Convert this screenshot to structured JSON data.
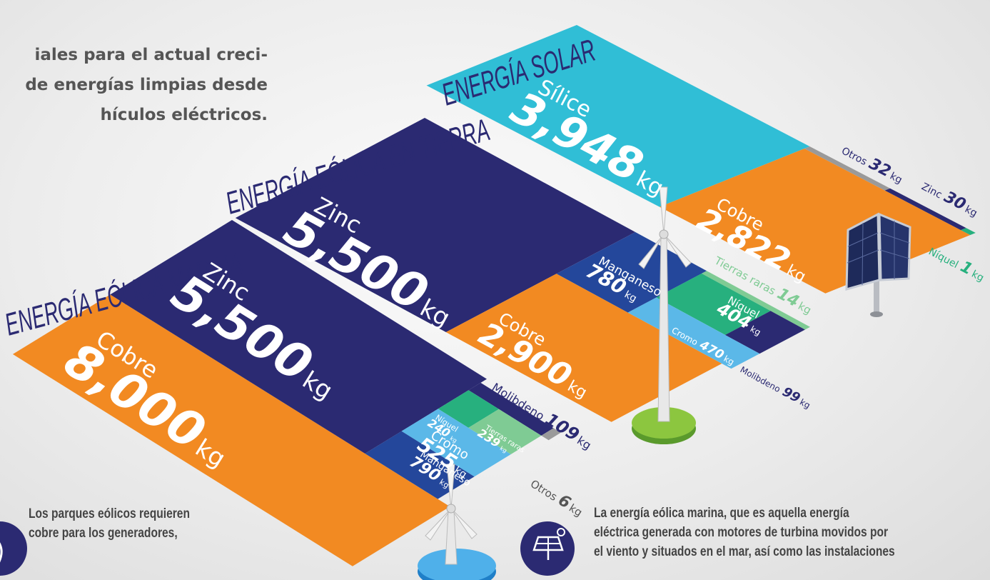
{
  "intro": [
    "iales para el actual creci-",
    "de energías limpias desde",
    "hículos eléctricos."
  ],
  "sections": [
    {
      "title": "ENERGÍA SOLAR",
      "materials": [
        {
          "name": "Sílice",
          "value": "3,948",
          "unit": "kg"
        },
        {
          "name": "Cobre",
          "value": "2,822",
          "unit": "kg"
        },
        {
          "name": "Otros",
          "value": "32",
          "unit": "kg"
        },
        {
          "name": "Zinc",
          "value": "30",
          "unit": "kg"
        },
        {
          "name": "Níquel",
          "value": "1",
          "unit": "kg"
        }
      ]
    },
    {
      "title": "ENERGÍA EÓLICA EN TIERRA",
      "materials": [
        {
          "name": "Zinc",
          "value": "5,500",
          "unit": "kg"
        },
        {
          "name": "Manganeso",
          "value": "780",
          "unit": "kg"
        },
        {
          "name": "Cobre",
          "value": "2,900",
          "unit": "kg"
        },
        {
          "name": "Tierras raras",
          "value": "14",
          "unit": "kg"
        },
        {
          "name": "Níquel",
          "value": "404",
          "unit": "kg"
        },
        {
          "name": "Cromo",
          "value": "470",
          "unit": "kg"
        },
        {
          "name": "Molibdeno",
          "value": "99",
          "unit": "kg"
        }
      ]
    },
    {
      "title": "ENERGÍA EÓLICA MARINA",
      "materials": [
        {
          "name": "Cobre",
          "value": "8,000",
          "unit": "kg"
        },
        {
          "name": "Zinc",
          "value": "5,500",
          "unit": "kg"
        },
        {
          "name": "Molibdeno",
          "value": "109",
          "unit": "kg"
        },
        {
          "name": "Níquel",
          "value": "240",
          "unit": "kg"
        },
        {
          "name": "Tierras raras",
          "value": "239",
          "unit": "kg"
        },
        {
          "name": "Cromo",
          "value": "525",
          "unit": "kg"
        },
        {
          "name": "Manganeso",
          "value": "790",
          "unit": "kg"
        },
        {
          "name": "Otros",
          "value": "6",
          "unit": "kg"
        }
      ]
    }
  ],
  "notes": [
    [
      "Los parques eólicos requieren",
      "cobre para los generadores,"
    ],
    [
      "La energía eólica marina, que es aquella energía",
      "eléctrica generada con motores de turbina movidos por",
      "el viento y situados en el mar, así como las instalaciones"
    ]
  ]
}
